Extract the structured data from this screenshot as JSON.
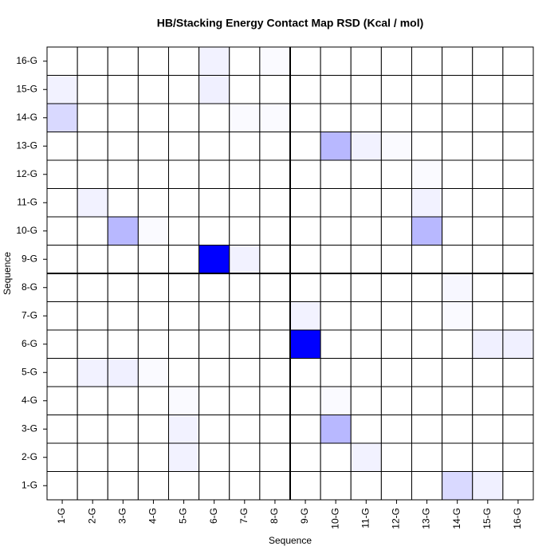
{
  "chart_data": {
    "type": "heatmap",
    "title": "HB/Stacking Energy Contact Map RSD (Kcal / mol)",
    "x_label": "Sequence",
    "y_label": "Sequence",
    "x_categories": [
      "1-G",
      "2-G",
      "3-G",
      "4-G",
      "5-G",
      "6-G",
      "7-G",
      "8-G",
      "9-G",
      "10-G",
      "11-G",
      "12-G",
      "13-G",
      "14-G",
      "15-G",
      "16-G"
    ],
    "y_categories": [
      "1-G",
      "2-G",
      "3-G",
      "4-G",
      "5-G",
      "6-G",
      "7-G",
      "8-G",
      "9-G",
      "10-G",
      "11-G",
      "12-G",
      "13-G",
      "14-G",
      "15-G",
      "16-G"
    ],
    "low_color": "#ffffff",
    "high_color": "#0000ff",
    "zlim": [
      0,
      1
    ],
    "values": [
      [
        0,
        0,
        0,
        0,
        0,
        0,
        0,
        0,
        0,
        0,
        0,
        0,
        0,
        0.15,
        0.06,
        0
      ],
      [
        0,
        0,
        0,
        0,
        0.05,
        0,
        0,
        0,
        0,
        0,
        0.05,
        0,
        0,
        0,
        0,
        0
      ],
      [
        0,
        0,
        0,
        0,
        0.05,
        0,
        0,
        0,
        0,
        0.28,
        0,
        0,
        0,
        0,
        0,
        0
      ],
      [
        0,
        0,
        0,
        0,
        0.02,
        0,
        0,
        0,
        0,
        0.02,
        0,
        0,
        0,
        0,
        0,
        0
      ],
      [
        0,
        0.05,
        0.06,
        0.02,
        0,
        0,
        0,
        0,
        0,
        0,
        0,
        0,
        0,
        0,
        0,
        0
      ],
      [
        0,
        0,
        0,
        0,
        0,
        0,
        0,
        0,
        1,
        0,
        0,
        0,
        0,
        0,
        0.06,
        0.06
      ],
      [
        0,
        0,
        0,
        0,
        0,
        0,
        0,
        0,
        0.05,
        0,
        0,
        0,
        0,
        0.02,
        0,
        0
      ],
      [
        0,
        0,
        0,
        0,
        0,
        0,
        0,
        0,
        0,
        0,
        0,
        0,
        0,
        0.03,
        0,
        0
      ],
      [
        0,
        0,
        0,
        0,
        0,
        1,
        0.05,
        0,
        0,
        0,
        0,
        0,
        0,
        0,
        0,
        0
      ],
      [
        0,
        0,
        0.28,
        0.02,
        0,
        0,
        0,
        0,
        0,
        0,
        0,
        0,
        0.28,
        0,
        0,
        0
      ],
      [
        0,
        0.05,
        0,
        0,
        0,
        0,
        0,
        0,
        0,
        0,
        0,
        0,
        0.05,
        0,
        0,
        0
      ],
      [
        0,
        0,
        0,
        0,
        0,
        0,
        0,
        0,
        0,
        0,
        0,
        0,
        0.02,
        0,
        0,
        0
      ],
      [
        0,
        0,
        0,
        0,
        0,
        0,
        0,
        0,
        0,
        0.28,
        0.05,
        0.02,
        0,
        0,
        0,
        0
      ],
      [
        0.15,
        0,
        0,
        0,
        0,
        0,
        0.02,
        0.02,
        0,
        0,
        0,
        0,
        0,
        0,
        0,
        0
      ],
      [
        0.05,
        0,
        0,
        0,
        0,
        0.06,
        0,
        0,
        0,
        0,
        0,
        0,
        0,
        0,
        0,
        0
      ],
      [
        0,
        0,
        0,
        0,
        0,
        0.05,
        0,
        0.02,
        0,
        0,
        0,
        0,
        0,
        0,
        0,
        0
      ]
    ]
  }
}
